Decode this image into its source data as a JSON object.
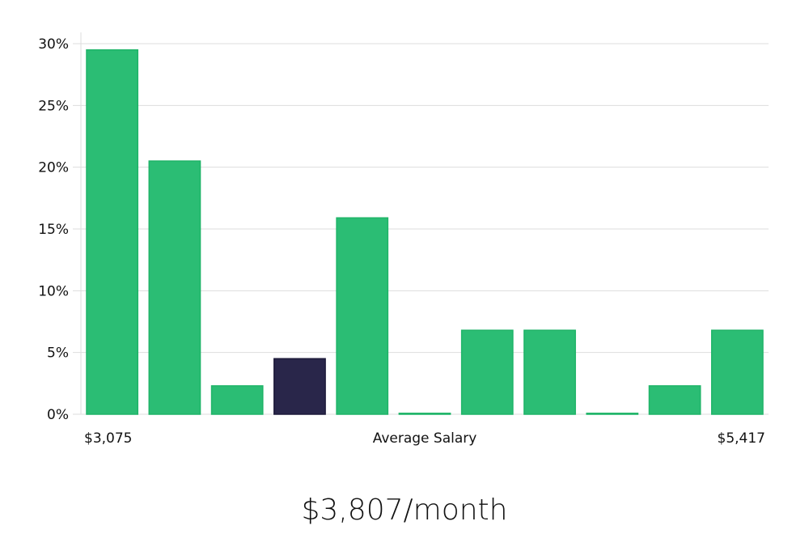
{
  "chart_data": {
    "type": "bar",
    "title": "",
    "xlabel": "Average Salary",
    "x_min_label": "$3,075",
    "x_max_label": "$5,417",
    "ylabel": "",
    "ylim": [
      0,
      30
    ],
    "yticks": [
      0,
      5,
      10,
      15,
      20,
      25,
      30
    ],
    "ytick_labels": [
      "0%",
      "5%",
      "10%",
      "15%",
      "20%",
      "25%",
      "30%"
    ],
    "grid": true,
    "values": [
      29.5,
      20.5,
      2.3,
      4.5,
      15.9,
      0,
      6.8,
      6.8,
      0,
      2.3,
      6.8
    ],
    "highlight_index": 3,
    "colors": {
      "bar": "#2bbd74",
      "bar_border": "#1fb468",
      "highlight": "#29264a",
      "grid": "#dddddd"
    }
  },
  "summary": "$3,807/month"
}
